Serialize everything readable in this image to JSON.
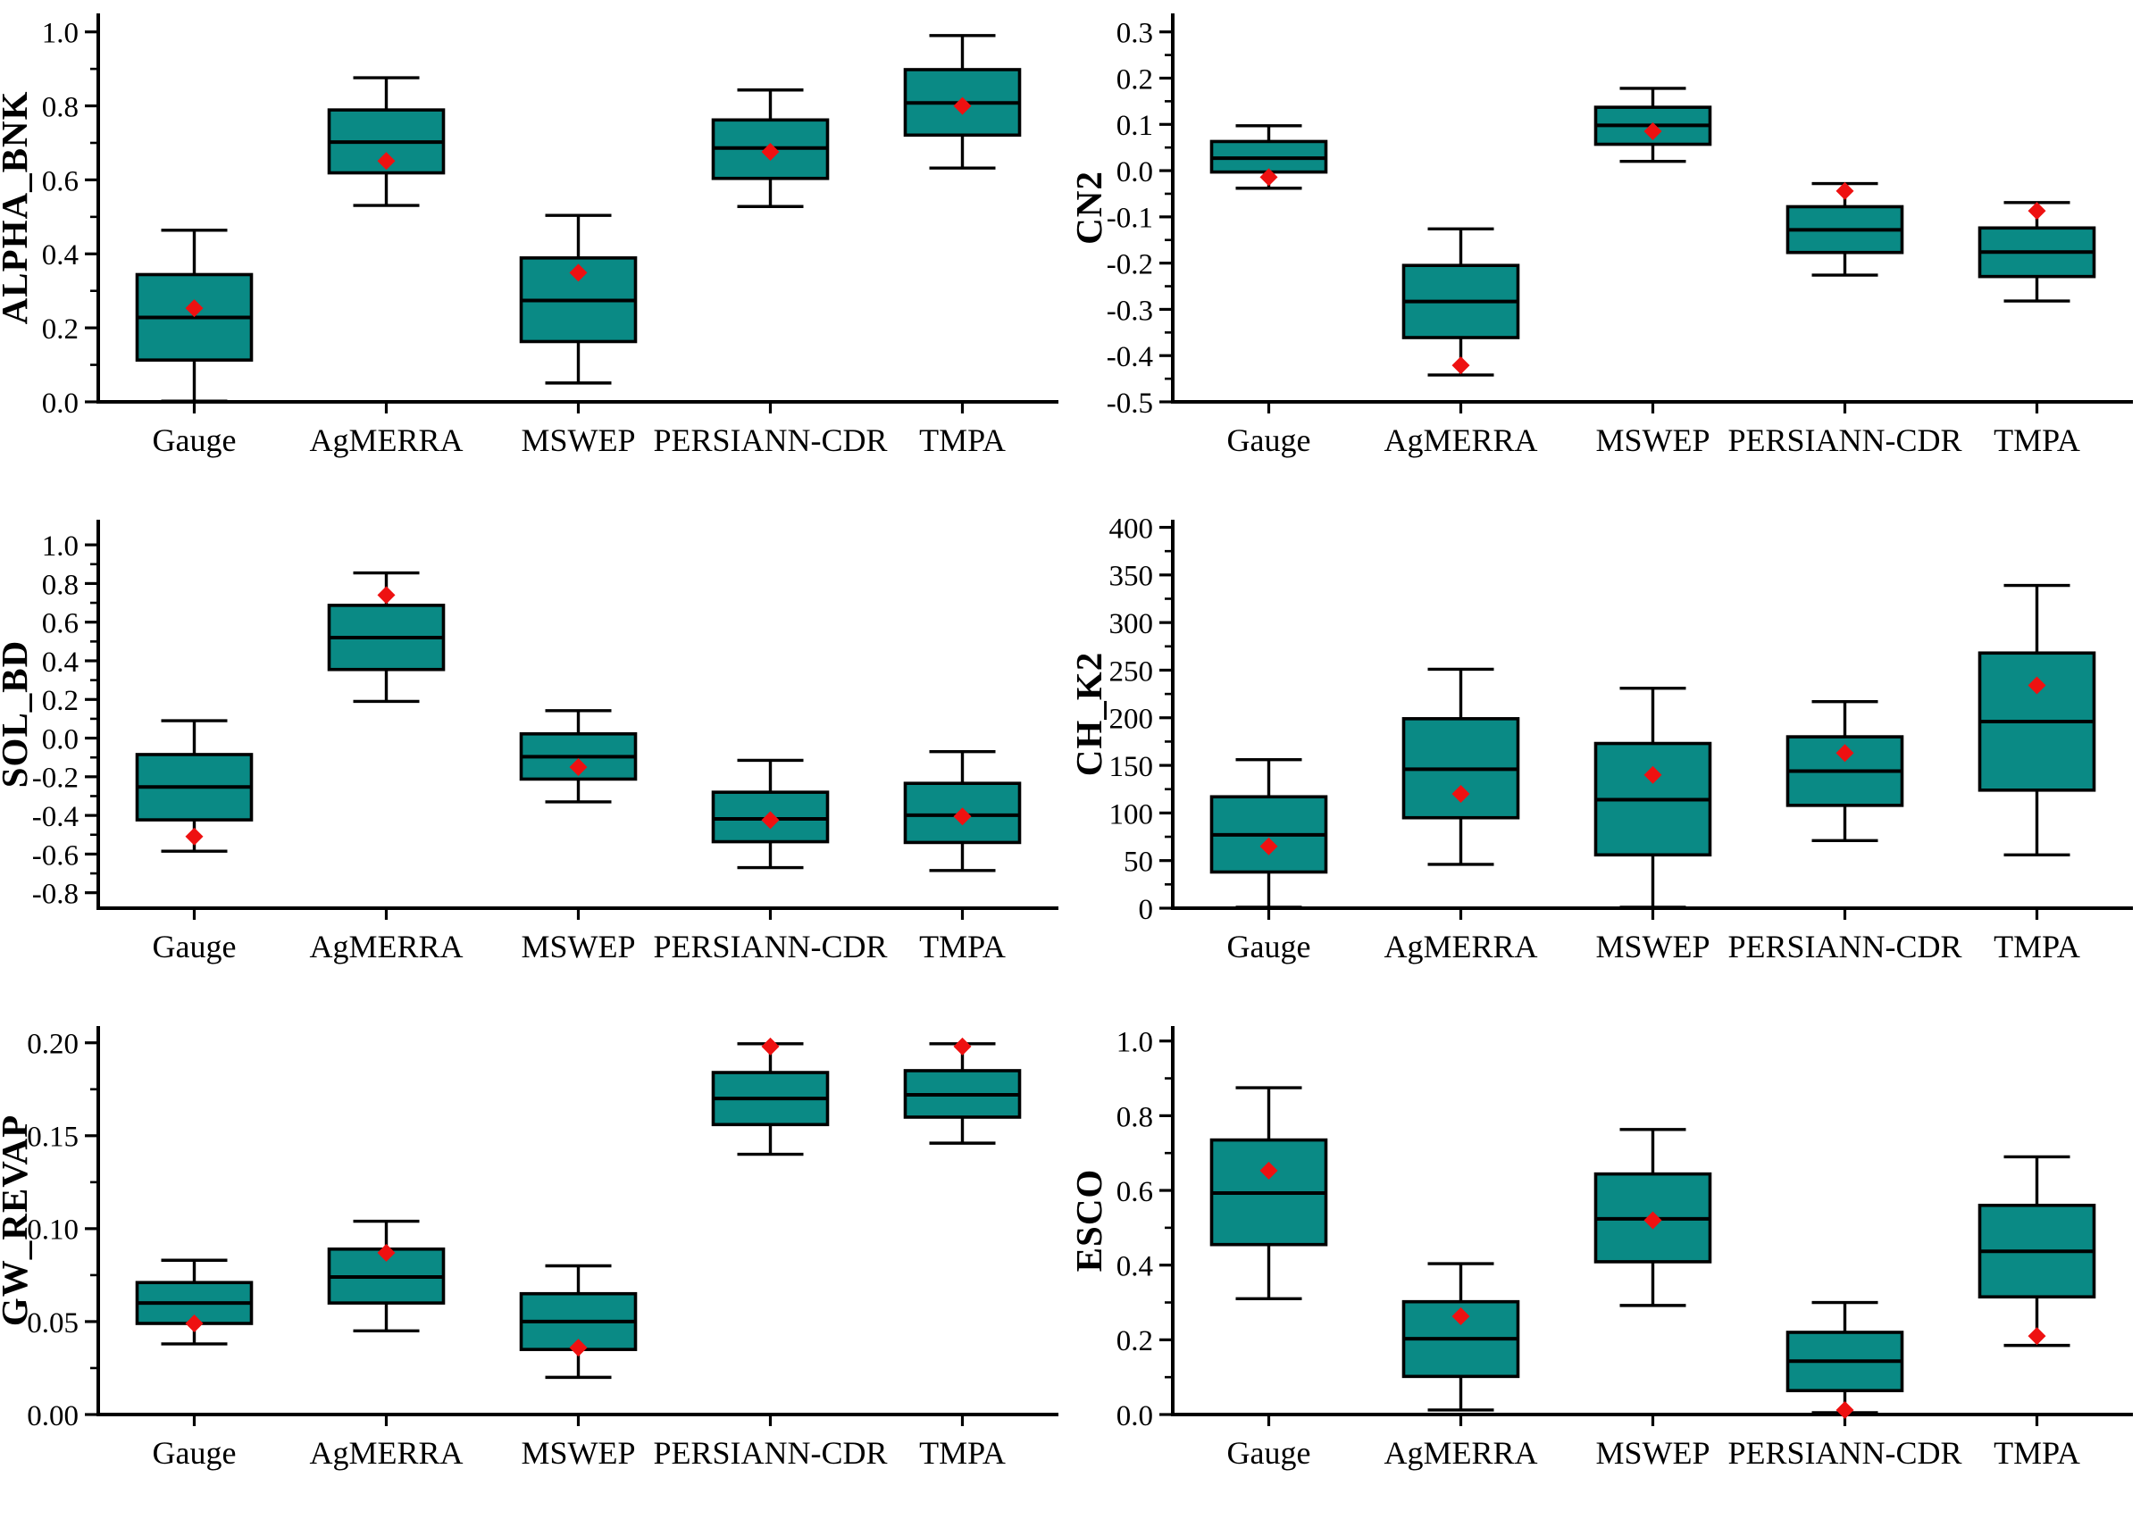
{
  "style": {
    "box_fill": "#0a8a85",
    "box_stroke": "#000000",
    "median_color": "#000000",
    "mean_marker_color": "#ee1111",
    "axis_color": "#000000",
    "background": "#ffffff"
  },
  "chart_data": [
    {
      "type": "boxplot",
      "ylabel": "ALPHA_BNK",
      "categories": [
        "Gauge",
        "AgMERRA",
        "MSWEP",
        "PERSIANN-CDR",
        "TMPA"
      ],
      "yticks": [
        0.0,
        0.2,
        0.4,
        0.6,
        0.8,
        1.0
      ],
      "tick_decimals": 1,
      "ylim": [
        0.0,
        1.05
      ],
      "grid": false,
      "series": [
        {
          "name": "Gauge",
          "whislo": 0.002,
          "q1": 0.113,
          "med": 0.228,
          "q3": 0.344,
          "whishi": 0.464,
          "mean": 0.253
        },
        {
          "name": "AgMERRA",
          "whislo": 0.531,
          "q1": 0.619,
          "med": 0.702,
          "q3": 0.789,
          "whishi": 0.876,
          "mean": 0.651
        },
        {
          "name": "MSWEP",
          "whislo": 0.051,
          "q1": 0.163,
          "med": 0.274,
          "q3": 0.389,
          "whishi": 0.504,
          "mean": 0.349
        },
        {
          "name": "PERSIANN-CDR",
          "whislo": 0.528,
          "q1": 0.604,
          "med": 0.686,
          "q3": 0.762,
          "whishi": 0.843,
          "mean": 0.676
        },
        {
          "name": "TMPA",
          "whislo": 0.632,
          "q1": 0.721,
          "med": 0.808,
          "q3": 0.898,
          "whishi": 0.99,
          "mean": 0.8
        }
      ]
    },
    {
      "type": "boxplot",
      "ylabel": "CN2",
      "categories": [
        "Gauge",
        "AgMERRA",
        "MSWEP",
        "PERSIANN-CDR",
        "TMPA"
      ],
      "yticks": [
        -0.5,
        -0.4,
        -0.3,
        -0.2,
        -0.1,
        0.0,
        0.1,
        0.2,
        0.3
      ],
      "tick_decimals": 1,
      "ylim": [
        -0.5,
        0.34
      ],
      "grid": false,
      "series": [
        {
          "name": "Gauge",
          "whislo": -0.038,
          "q1": -0.003,
          "med": 0.027,
          "q3": 0.063,
          "whishi": 0.097,
          "mean": -0.014
        },
        {
          "name": "AgMERRA",
          "whislo": -0.442,
          "q1": -0.361,
          "med": -0.283,
          "q3": -0.205,
          "whishi": -0.126,
          "mean": -0.421
        },
        {
          "name": "MSWEP",
          "whislo": 0.02,
          "q1": 0.057,
          "med": 0.098,
          "q3": 0.137,
          "whishi": 0.178,
          "mean": 0.085
        },
        {
          "name": "PERSIANN-CDR",
          "whislo": -0.226,
          "q1": -0.177,
          "med": -0.128,
          "q3": -0.078,
          "whishi": -0.028,
          "mean": -0.044
        },
        {
          "name": "TMPA",
          "whislo": -0.282,
          "q1": -0.229,
          "med": -0.176,
          "q3": -0.124,
          "whishi": -0.069,
          "mean": -0.087
        }
      ]
    },
    {
      "type": "boxplot",
      "ylabel": "SOL_BD",
      "categories": [
        "Gauge",
        "AgMERRA",
        "MSWEP",
        "PERSIANN-CDR",
        "TMPA"
      ],
      "yticks": [
        -0.8,
        -0.6,
        -0.4,
        -0.2,
        0.0,
        0.2,
        0.4,
        0.6,
        0.8,
        1.0
      ],
      "tick_decimals": 1,
      "ylim": [
        -0.88,
        1.13
      ],
      "grid": false,
      "series": [
        {
          "name": "Gauge",
          "whislo": -0.585,
          "q1": -0.423,
          "med": -0.253,
          "q3": -0.085,
          "whishi": 0.09,
          "mean": -0.509
        },
        {
          "name": "AgMERRA",
          "whislo": 0.19,
          "q1": 0.355,
          "med": 0.52,
          "q3": 0.687,
          "whishi": 0.855,
          "mean": 0.74
        },
        {
          "name": "MSWEP",
          "whislo": -0.33,
          "q1": -0.212,
          "med": -0.096,
          "q3": 0.022,
          "whishi": 0.142,
          "mean": -0.15
        },
        {
          "name": "PERSIANN-CDR",
          "whislo": -0.67,
          "q1": -0.536,
          "med": -0.418,
          "q3": -0.28,
          "whishi": -0.115,
          "mean": -0.424
        },
        {
          "name": "TMPA",
          "whislo": -0.685,
          "q1": -0.54,
          "med": -0.399,
          "q3": -0.234,
          "whishi": -0.07,
          "mean": -0.405
        }
      ]
    },
    {
      "type": "boxplot",
      "ylabel": "CH_K2",
      "categories": [
        "Gauge",
        "AgMERRA",
        "MSWEP",
        "PERSIANN-CDR",
        "TMPA"
      ],
      "yticks": [
        0,
        50,
        100,
        150,
        200,
        250,
        300,
        350,
        400
      ],
      "tick_decimals": 0,
      "ylim": [
        0,
        408
      ],
      "grid": false,
      "series": [
        {
          "name": "Gauge",
          "whislo": 1,
          "q1": 38,
          "med": 77,
          "q3": 117,
          "whishi": 156,
          "mean": 65
        },
        {
          "name": "AgMERRA",
          "whislo": 46,
          "q1": 95,
          "med": 146,
          "q3": 199,
          "whishi": 251,
          "mean": 120
        },
        {
          "name": "MSWEP",
          "whislo": 1,
          "q1": 56,
          "med": 114,
          "q3": 173,
          "whishi": 231,
          "mean": 140
        },
        {
          "name": "PERSIANN-CDR",
          "whislo": 71,
          "q1": 108,
          "med": 144,
          "q3": 180,
          "whishi": 217,
          "mean": 163
        },
        {
          "name": "TMPA",
          "whislo": 56,
          "q1": 124,
          "med": 196,
          "q3": 268,
          "whishi": 339,
          "mean": 234
        }
      ]
    },
    {
      "type": "boxplot",
      "ylabel": "GW_REVAP",
      "categories": [
        "Gauge",
        "AgMERRA",
        "MSWEP",
        "PERSIANN-CDR",
        "TMPA"
      ],
      "yticks": [
        0.0,
        0.05,
        0.1,
        0.15,
        0.2
      ],
      "tick_decimals": 2,
      "ylim": [
        0.0,
        0.209
      ],
      "grid": false,
      "series": [
        {
          "name": "Gauge",
          "whislo": 0.038,
          "q1": 0.049,
          "med": 0.06,
          "q3": 0.071,
          "whishi": 0.083,
          "mean": 0.049
        },
        {
          "name": "AgMERRA",
          "whislo": 0.045,
          "q1": 0.06,
          "med": 0.074,
          "q3": 0.089,
          "whishi": 0.104,
          "mean": 0.087
        },
        {
          "name": "MSWEP",
          "whislo": 0.02,
          "q1": 0.035,
          "med": 0.05,
          "q3": 0.065,
          "whishi": 0.08,
          "mean": 0.036
        },
        {
          "name": "PERSIANN-CDR",
          "whislo": 0.14,
          "q1": 0.156,
          "med": 0.17,
          "q3": 0.184,
          "whishi": 0.1995,
          "mean": 0.198
        },
        {
          "name": "TMPA",
          "whislo": 0.146,
          "q1": 0.16,
          "med": 0.172,
          "q3": 0.185,
          "whishi": 0.1995,
          "mean": 0.198
        }
      ]
    },
    {
      "type": "boxplot",
      "ylabel": "ESCO",
      "categories": [
        "Gauge",
        "AgMERRA",
        "MSWEP",
        "PERSIANN-CDR",
        "TMPA"
      ],
      "yticks": [
        0.0,
        0.2,
        0.4,
        0.6,
        0.8,
        1.0
      ],
      "tick_decimals": 1,
      "ylim": [
        0.0,
        1.04
      ],
      "grid": false,
      "series": [
        {
          "name": "Gauge",
          "whislo": 0.31,
          "q1": 0.455,
          "med": 0.593,
          "q3": 0.735,
          "whishi": 0.875,
          "mean": 0.653
        },
        {
          "name": "AgMERRA",
          "whislo": 0.012,
          "q1": 0.102,
          "med": 0.203,
          "q3": 0.302,
          "whishi": 0.404,
          "mean": 0.263
        },
        {
          "name": "MSWEP",
          "whislo": 0.292,
          "q1": 0.409,
          "med": 0.524,
          "q3": 0.644,
          "whishi": 0.763,
          "mean": 0.52
        },
        {
          "name": "PERSIANN-CDR",
          "whislo": 0.005,
          "q1": 0.064,
          "med": 0.143,
          "q3": 0.22,
          "whishi": 0.3,
          "mean": 0.012
        },
        {
          "name": "TMPA",
          "whislo": 0.185,
          "q1": 0.315,
          "med": 0.437,
          "q3": 0.56,
          "whishi": 0.69,
          "mean": 0.21
        }
      ]
    }
  ]
}
